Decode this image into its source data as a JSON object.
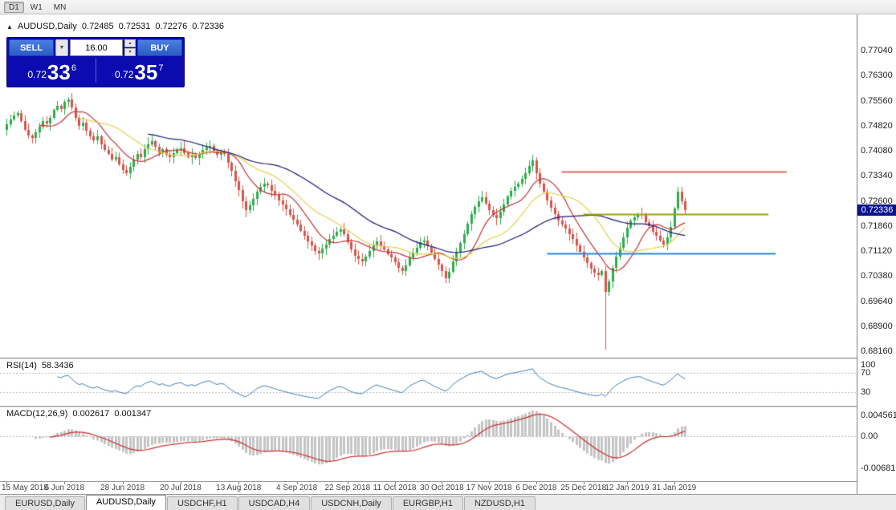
{
  "toolbar": {
    "timeframes": [
      "D1",
      "W1",
      "MN"
    ],
    "active_timeframe": "D1"
  },
  "chart_header": {
    "collapse_icon": "▲",
    "symbol_label": "AUDUSD,Daily",
    "open": "0.72485",
    "high": "0.72531",
    "low": "0.72276",
    "close": "0.72336"
  },
  "trade_panel": {
    "sell_label": "SELL",
    "buy_label": "BUY",
    "lot_size": "16.00",
    "caret_icon": "▼",
    "spin_up_icon": "▲",
    "spin_down_icon": "▼",
    "sell_price": {
      "prefix": "0.72",
      "big": "33",
      "sup": "6"
    },
    "buy_price": {
      "prefix": "0.72",
      "big": "35",
      "sup": "7"
    }
  },
  "price_axis": {
    "labels": [
      "0.77040",
      "0.76300",
      "0.75560",
      "0.74820",
      "0.74080",
      "0.73340",
      "0.72600",
      "0.71860",
      "0.71120",
      "0.70380",
      "0.69640",
      "0.68900",
      "0.68160"
    ],
    "current_price": "0.72336"
  },
  "rsi_panel": {
    "label": "RSI(14)",
    "value": "58.3436",
    "axis": [
      {
        "text": "100",
        "v": 100,
        "line": false
      },
      {
        "text": "70",
        "v": 70,
        "line": true
      },
      {
        "text": "30",
        "v": 30,
        "line": true
      }
    ],
    "line_color": "#3f7db8"
  },
  "macd_panel": {
    "label": "MACD(12,26,9)",
    "value_main": "0.002617",
    "value_signal": "0.001347",
    "axis": [
      {
        "text": "0.004561",
        "v": 0.004561,
        "line": false
      },
      {
        "text": "0.00",
        "v": 0,
        "line": true
      },
      {
        "text": "-0.006819",
        "v": -0.006819,
        "line": false
      }
    ],
    "histogram_color": "#c4c4c4",
    "signal_color": "#cc2f2f"
  },
  "date_axis": [
    {
      "text": "15 May 2018",
      "i": 0
    },
    {
      "text": "6 Jun 2018",
      "i": 16
    },
    {
      "text": "28 Jun 2018",
      "i": 32
    },
    {
      "text": "20 Jul 2018",
      "i": 48
    },
    {
      "text": "13 Aug 2018",
      "i": 64
    },
    {
      "text": "4 Sep 2018",
      "i": 80
    },
    {
      "text": "22 Sep 2018",
      "i": 94
    },
    {
      "text": "11 Oct 2018",
      "i": 107
    },
    {
      "text": "30 Oct 2018",
      "i": 120
    },
    {
      "text": "17 Nov 2018",
      "i": 133
    },
    {
      "text": "6 Dec 2018",
      "i": 146
    },
    {
      "text": "25 Dec 2018",
      "i": 159
    },
    {
      "text": "12 Jan 2019",
      "i": 171
    },
    {
      "text": "31 Jan 2019",
      "i": 184
    }
  ],
  "tabs": {
    "items": [
      "EURUSD,Daily",
      "AUDUSD,Daily",
      "USDCHF,H1",
      "USDCAD,H4",
      "USDCNH,Daily",
      "EURGBP,H1",
      "NZDUSD,H1"
    ],
    "active": "AUDUSD,Daily"
  },
  "chart_data": {
    "type": "candlestick",
    "symbol": "AUDUSD",
    "timeframe": "Daily",
    "up_color": "#2dab4d",
    "down_color": "#d8544a",
    "first_open": 0.747,
    "closes": [
      0.7485,
      0.75,
      0.7512,
      0.752,
      0.7495,
      0.747,
      0.7452,
      0.7445,
      0.7462,
      0.748,
      0.7495,
      0.7488,
      0.7505,
      0.7528,
      0.754,
      0.7532,
      0.7552,
      0.756,
      0.7535,
      0.7505,
      0.7482,
      0.749,
      0.7468,
      0.745,
      0.7438,
      0.745,
      0.7428,
      0.741,
      0.7398,
      0.7382,
      0.739,
      0.7368,
      0.7352,
      0.7342,
      0.736,
      0.7382,
      0.7398,
      0.739,
      0.7412,
      0.7428,
      0.7436,
      0.742,
      0.7402,
      0.7412,
      0.7396,
      0.7388,
      0.7402,
      0.741,
      0.7416,
      0.74,
      0.7388,
      0.7396,
      0.7386,
      0.7398,
      0.741,
      0.7418,
      0.7422,
      0.7408,
      0.7396,
      0.7402,
      0.7398,
      0.7372,
      0.7348,
      0.7318,
      0.7292,
      0.7258,
      0.7232,
      0.7248,
      0.7266,
      0.7288,
      0.7302,
      0.7312,
      0.7306,
      0.729,
      0.7278,
      0.7262,
      0.725,
      0.7234,
      0.7218,
      0.7204,
      0.719,
      0.7172,
      0.7158,
      0.714,
      0.7128,
      0.7112,
      0.7104,
      0.7118,
      0.7132,
      0.7148,
      0.7158,
      0.717,
      0.7176,
      0.7162,
      0.7138,
      0.7116,
      0.7098,
      0.7088,
      0.7082,
      0.7096,
      0.7112,
      0.7128,
      0.714,
      0.7126,
      0.7116,
      0.7102,
      0.7092,
      0.708,
      0.7062,
      0.7052,
      0.707,
      0.7092,
      0.7108,
      0.7122,
      0.7138,
      0.7142,
      0.7126,
      0.7108,
      0.7088,
      0.7072,
      0.7052,
      0.7032,
      0.705,
      0.7082,
      0.7108,
      0.7136,
      0.7162,
      0.7192,
      0.722,
      0.7242,
      0.7258,
      0.727,
      0.7252,
      0.7232,
      0.7218,
      0.7208,
      0.7228,
      0.725,
      0.7272,
      0.729,
      0.7302,
      0.7312,
      0.7326,
      0.7342,
      0.7362,
      0.738,
      0.7342,
      0.7312,
      0.7288,
      0.7262,
      0.724,
      0.7222,
      0.7202,
      0.719,
      0.7178,
      0.7162,
      0.7148,
      0.7128,
      0.711,
      0.7092,
      0.7076,
      0.706,
      0.7048,
      0.704,
      0.7052,
      0.6992,
      0.7022,
      0.7062,
      0.7096,
      0.7122,
      0.7152,
      0.718,
      0.7202,
      0.7212,
      0.7222,
      0.7218,
      0.7198,
      0.7186,
      0.717,
      0.7158,
      0.7142,
      0.713,
      0.7152,
      0.7182,
      0.7238,
      0.7288,
      0.7258,
      0.72336
    ],
    "wick_overrides": {
      "17": {
        "high": 0.7566
      },
      "98": {
        "low": 0.7068
      },
      "109": {
        "low": 0.704
      },
      "121": {
        "low": 0.7018
      },
      "165": {
        "low": 0.682
      },
      "185": {
        "high": 0.7301
      }
    },
    "moving_averages": [
      {
        "period": 10,
        "color": "#c43232"
      },
      {
        "period": 21,
        "color": "#e2d24b"
      },
      {
        "period": 40,
        "color": "#18187a"
      }
    ],
    "hlines": [
      {
        "price": 0.7346,
        "color": "#e03a30",
        "from_idx": 153,
        "to_idx": 215,
        "width": 1.5
      },
      {
        "price": 0.722,
        "color": "#9aa015",
        "from_idx": 159,
        "to_idx": 210,
        "width": 2
      },
      {
        "price": 0.7105,
        "color": "#2e86d8",
        "from_idx": 149,
        "to_idx": 212,
        "width": 2
      }
    ]
  }
}
